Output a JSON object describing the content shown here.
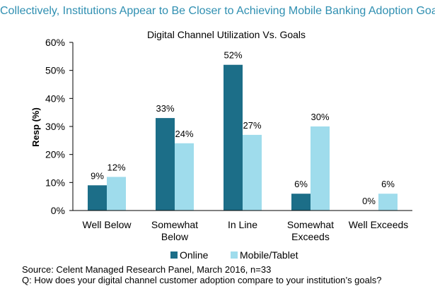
{
  "headline": "Collectively, Institutions Appear to Be Closer to Achieving Mobile Banking Adoption Goals",
  "chart_data": {
    "type": "bar",
    "title": "Digital Channel Utilization Vs. Goals",
    "xlabel": "",
    "ylabel": "Resp (%)",
    "ylim": [
      0,
      60
    ],
    "yticks": [
      0,
      10,
      20,
      30,
      40,
      50,
      60
    ],
    "ytick_labels": [
      "0%",
      "10%",
      "20%",
      "30%",
      "40%",
      "50%",
      "60%"
    ],
    "categories": [
      [
        "Well Below"
      ],
      [
        "Somewhat",
        "Below"
      ],
      [
        "In Line"
      ],
      [
        "Somewhat",
        "Exceeds"
      ],
      [
        "Well Exceeds"
      ]
    ],
    "series": [
      {
        "name": "Online",
        "color": "#1c6e88",
        "values": [
          9,
          33,
          52,
          6,
          0
        ],
        "labels": [
          "9%",
          "33%",
          "52%",
          "6%",
          "0%"
        ]
      },
      {
        "name": "Mobile/Tablet",
        "color": "#9fdcec",
        "values": [
          12,
          24,
          27,
          30,
          6
        ],
        "labels": [
          "12%",
          "24%",
          "27%",
          "30%",
          "6%"
        ]
      }
    ],
    "grid": false,
    "legend_position": "bottom"
  },
  "footer": {
    "source": "Source: Celent Managed Research Panel, March 2016, n=33",
    "question": "Q: How does your digital channel customer adoption compare to your institution’s goals?"
  }
}
